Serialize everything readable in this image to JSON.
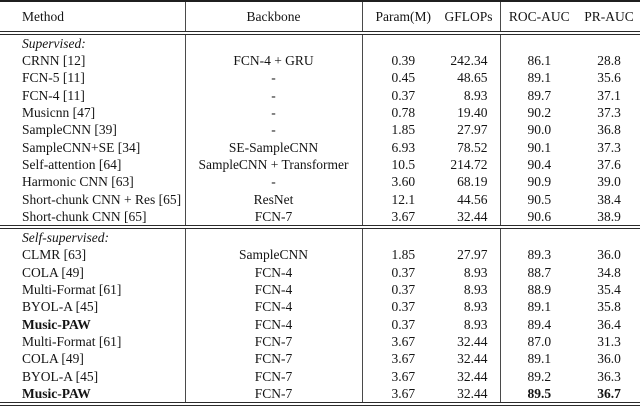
{
  "table": {
    "columns": [
      "Method",
      "Backbone",
      "Param(M)",
      "GFLOPs",
      "ROC-AUC",
      "PR-AUC"
    ],
    "rows": [
      {
        "type": "section",
        "label": "Supervised:"
      },
      {
        "type": "data",
        "method": "CRNN [12]",
        "backbone": "FCN-4 + GRU",
        "param": "0.39",
        "gflops": "242.34",
        "roc": "86.1",
        "pr": "28.8"
      },
      {
        "type": "data",
        "method": "FCN-5 [11]",
        "backbone": "-",
        "param": "0.45",
        "gflops": "48.65",
        "roc": "89.1",
        "pr": "35.6"
      },
      {
        "type": "data",
        "method": "FCN-4 [11]",
        "backbone": "-",
        "param": "0.37",
        "gflops": "8.93",
        "roc": "89.7",
        "pr": "37.1"
      },
      {
        "type": "data",
        "method": "Musicnn [47]",
        "backbone": "-",
        "param": "0.78",
        "gflops": "19.40",
        "roc": "90.2",
        "pr": "37.3"
      },
      {
        "type": "data",
        "method": "SampleCNN [39]",
        "backbone": "-",
        "param": "1.85",
        "gflops": "27.97",
        "roc": "90.0",
        "pr": "36.8"
      },
      {
        "type": "data",
        "method": "SampleCNN+SE [34]",
        "backbone": "SE-SampleCNN",
        "param": "6.93",
        "gflops": "78.52",
        "roc": "90.1",
        "pr": "37.3"
      },
      {
        "type": "data",
        "method": "Self-attention [64]",
        "backbone": "SampleCNN + Transformer",
        "param": "10.5",
        "gflops": "214.72",
        "roc": "90.4",
        "pr": "37.6"
      },
      {
        "type": "data",
        "method": "Harmonic CNN [63]",
        "backbone": "-",
        "param": "3.60",
        "gflops": "68.19",
        "roc": "90.9",
        "pr": "39.0"
      },
      {
        "type": "data",
        "method": "Short-chunk CNN + Res [65]",
        "backbone": "ResNet",
        "param": "12.1",
        "gflops": "44.56",
        "roc": "90.5",
        "pr": "38.4"
      },
      {
        "type": "data",
        "method": "Short-chunk CNN [65]",
        "backbone": "FCN-7",
        "param": "3.67",
        "gflops": "32.44",
        "roc": "90.6",
        "pr": "38.9"
      },
      {
        "type": "section",
        "label": "Self-supervised:",
        "separator": true
      },
      {
        "type": "data",
        "method": "CLMR [63]",
        "backbone": "SampleCNN",
        "param": "1.85",
        "gflops": "27.97",
        "roc": "89.3",
        "pr": "36.0"
      },
      {
        "type": "data",
        "method": "COLA [49]",
        "backbone": "FCN-4",
        "param": "0.37",
        "gflops": "8.93",
        "roc": "88.7",
        "pr": "34.8"
      },
      {
        "type": "data",
        "method": "Multi-Format [61]",
        "backbone": "FCN-4",
        "param": "0.37",
        "gflops": "8.93",
        "roc": "88.9",
        "pr": "35.4"
      },
      {
        "type": "data",
        "method": "BYOL-A [45]",
        "backbone": "FCN-4",
        "param": "0.37",
        "gflops": "8.93",
        "roc": "89.1",
        "pr": "35.8"
      },
      {
        "type": "data",
        "method": "Music-PAW",
        "backbone": "FCN-4",
        "param": "0.37",
        "gflops": "8.93",
        "roc": "89.4",
        "pr": "36.4",
        "bold_method": true
      },
      {
        "type": "data",
        "method": "Multi-Format [61]",
        "backbone": "FCN-7",
        "param": "3.67",
        "gflops": "32.44",
        "roc": "87.0",
        "pr": "31.3"
      },
      {
        "type": "data",
        "method": "COLA [49]",
        "backbone": "FCN-7",
        "param": "3.67",
        "gflops": "32.44",
        "roc": "89.1",
        "pr": "36.0"
      },
      {
        "type": "data",
        "method": "BYOL-A [45]",
        "backbone": "FCN-7",
        "param": "3.67",
        "gflops": "32.44",
        "roc": "89.2",
        "pr": "36.3"
      },
      {
        "type": "data",
        "method": "Music-PAW",
        "backbone": "FCN-7",
        "param": "3.67",
        "gflops": "32.44",
        "roc": "89.5",
        "pr": "36.7",
        "bold_method": true,
        "bold_scores": true
      }
    ],
    "colors": {
      "rule": "#2b2b2b",
      "column_divider": "#4a4a4a",
      "text": "#141414",
      "background": "#ffffff"
    }
  }
}
